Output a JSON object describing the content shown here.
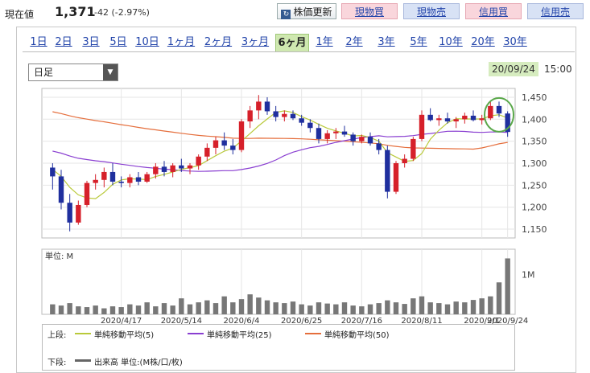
{
  "header": {
    "price_label": "現在値",
    "price": "1,371",
    "change": "-42 (-2.97%)",
    "buttons": {
      "refresh": "株価更新",
      "spot_buy": "現物買",
      "spot_sell": "現物売",
      "margin_buy": "信用買",
      "margin_sell": "信用売"
    }
  },
  "periods": [
    "1日",
    "2日",
    "3日",
    "5日",
    "10日",
    "1ヶ月",
    "2ヶ月",
    "3ヶ月",
    "6ヶ月",
    "1年",
    "2年",
    "3年",
    "5年",
    "10年",
    "20年",
    "30年"
  ],
  "active_period": "6ヶ月",
  "interval_select": "日足",
  "timestamp": {
    "date": "20/09/24",
    "time": "15:00"
  },
  "legend": {
    "upper_label": "上段:",
    "lower_label": "下段:",
    "ma5": "単純移動平均(5)",
    "ma25": "単純移動平均(25)",
    "ma50": "単純移動平均(50)",
    "volume": "出来高 単位:(M株/口/枚)"
  },
  "colors": {
    "up": "#d6202a",
    "down": "#1f2f9e",
    "ma5": "#b9c93a",
    "ma25": "#8a3fd1",
    "ma50": "#e56e3c",
    "highlight": "#5aa84a"
  },
  "chart_data": {
    "type": "candlestick",
    "price_ticks": [
      "1,450",
      "1,400",
      "1,350",
      "1,300",
      "1,250",
      "1,200",
      "1,150"
    ],
    "price_range": [
      1130,
      1470
    ],
    "x_ticks": [
      "2020/4/17",
      "2020/5/14",
      "2020/6/4",
      "2020/6/25",
      "2020/7/16",
      "2020/8/11",
      "2020/9/1",
      "2020/9/24"
    ],
    "volume_label": "単位: M",
    "volume_tick": "1M",
    "candles": [
      [
        1290,
        1300,
        1240,
        1270
      ],
      [
        1270,
        1285,
        1195,
        1210
      ],
      [
        1210,
        1230,
        1145,
        1165
      ],
      [
        1165,
        1215,
        1160,
        1205
      ],
      [
        1205,
        1260,
        1200,
        1255
      ],
      [
        1255,
        1275,
        1240,
        1262
      ],
      [
        1262,
        1290,
        1245,
        1280
      ],
      [
        1280,
        1300,
        1250,
        1258
      ],
      [
        1258,
        1270,
        1245,
        1255
      ],
      [
        1255,
        1275,
        1245,
        1268
      ],
      [
        1268,
        1280,
        1250,
        1258
      ],
      [
        1258,
        1280,
        1255,
        1275
      ],
      [
        1275,
        1300,
        1265,
        1292
      ],
      [
        1292,
        1305,
        1270,
        1280
      ],
      [
        1280,
        1300,
        1268,
        1295
      ],
      [
        1295,
        1310,
        1280,
        1288
      ],
      [
        1288,
        1300,
        1275,
        1295
      ],
      [
        1295,
        1320,
        1285,
        1315
      ],
      [
        1315,
        1345,
        1305,
        1335
      ],
      [
        1335,
        1360,
        1320,
        1352
      ],
      [
        1352,
        1370,
        1330,
        1340
      ],
      [
        1340,
        1355,
        1320,
        1330
      ],
      [
        1330,
        1400,
        1325,
        1395
      ],
      [
        1395,
        1430,
        1380,
        1420
      ],
      [
        1420,
        1455,
        1400,
        1440
      ],
      [
        1440,
        1450,
        1410,
        1418
      ],
      [
        1418,
        1430,
        1395,
        1405
      ],
      [
        1405,
        1420,
        1395,
        1412
      ],
      [
        1412,
        1420,
        1398,
        1402
      ],
      [
        1402,
        1410,
        1385,
        1392
      ],
      [
        1392,
        1400,
        1370,
        1380
      ],
      [
        1380,
        1390,
        1345,
        1355
      ],
      [
        1355,
        1375,
        1345,
        1368
      ],
      [
        1368,
        1380,
        1355,
        1372
      ],
      [
        1372,
        1385,
        1360,
        1365
      ],
      [
        1365,
        1370,
        1340,
        1350
      ],
      [
        1350,
        1365,
        1345,
        1360
      ],
      [
        1360,
        1370,
        1340,
        1345
      ],
      [
        1345,
        1355,
        1320,
        1330
      ],
      [
        1330,
        1340,
        1220,
        1235
      ],
      [
        1235,
        1305,
        1230,
        1300
      ],
      [
        1300,
        1320,
        1290,
        1310
      ],
      [
        1310,
        1360,
        1305,
        1355
      ],
      [
        1355,
        1420,
        1350,
        1410
      ],
      [
        1410,
        1425,
        1395,
        1398
      ],
      [
        1398,
        1410,
        1385,
        1402
      ],
      [
        1402,
        1415,
        1390,
        1395
      ],
      [
        1395,
        1405,
        1380,
        1400
      ],
      [
        1400,
        1415,
        1390,
        1408
      ],
      [
        1408,
        1420,
        1395,
        1398
      ],
      [
        1398,
        1410,
        1388,
        1402
      ],
      [
        1402,
        1440,
        1398,
        1430
      ],
      [
        1430,
        1440,
        1405,
        1413
      ],
      [
        1413,
        1418,
        1360,
        1371
      ]
    ],
    "volumes": [
      0.25,
      0.22,
      0.28,
      0.2,
      0.18,
      0.22,
      0.15,
      0.2,
      0.18,
      0.25,
      0.22,
      0.3,
      0.2,
      0.28,
      0.22,
      0.4,
      0.25,
      0.3,
      0.35,
      0.28,
      0.45,
      0.3,
      0.38,
      0.5,
      0.42,
      0.35,
      0.3,
      0.28,
      0.32,
      0.25,
      0.22,
      0.3,
      0.27,
      0.25,
      0.3,
      0.22,
      0.2,
      0.25,
      0.28,
      0.35,
      0.3,
      0.26,
      0.4,
      0.45,
      0.3,
      0.28,
      0.25,
      0.32,
      0.3,
      0.36,
      0.4,
      0.45,
      0.8,
      1.4
    ]
  }
}
